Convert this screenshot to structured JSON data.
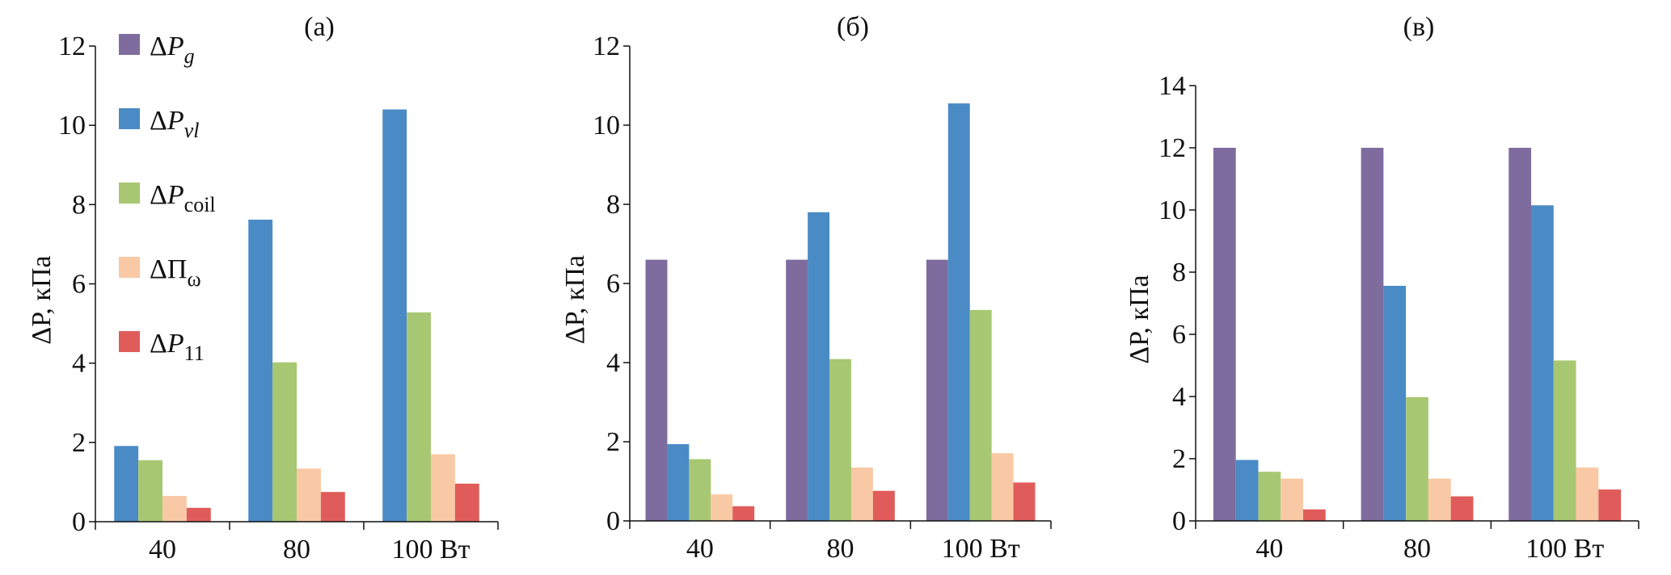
{
  "chart_data": [
    {
      "type": "bar",
      "title": "(a)",
      "ylabel": "ΔP, кПа",
      "categories": [
        "40",
        "80",
        "100 Вт"
      ],
      "ylim": [
        0,
        12
      ],
      "yticks": [
        0,
        2,
        4,
        6,
        8,
        10,
        12
      ],
      "grid": false,
      "legend": "top-left",
      "series": [
        {
          "name": "ΔPg",
          "values": [
            null,
            null,
            null
          ]
        },
        {
          "name": "ΔPvl",
          "values": [
            1.91,
            7.62,
            10.4
          ]
        },
        {
          "name": "ΔPcoil",
          "values": [
            1.55,
            4.02,
            5.28
          ]
        },
        {
          "name": "ΔΠω",
          "values": [
            0.65,
            1.34,
            1.7
          ]
        },
        {
          "name": "ΔP11",
          "values": [
            0.35,
            0.75,
            0.96
          ]
        }
      ]
    },
    {
      "type": "bar",
      "title": "(б)",
      "ylabel": "ΔP, кПа",
      "categories": [
        "40",
        "80",
        "100 Вт"
      ],
      "ylim": [
        0,
        12
      ],
      "yticks": [
        0,
        2,
        4,
        6,
        8,
        10,
        12
      ],
      "grid": false,
      "series": [
        {
          "name": "ΔPg",
          "values": [
            6.6,
            6.6,
            6.6
          ]
        },
        {
          "name": "ΔPvl",
          "values": [
            1.94,
            7.8,
            10.55
          ]
        },
        {
          "name": "ΔPcoil",
          "values": [
            1.56,
            4.09,
            5.33
          ]
        },
        {
          "name": "ΔΠω",
          "values": [
            0.67,
            1.35,
            1.71
          ]
        },
        {
          "name": "ΔP11",
          "values": [
            0.37,
            0.76,
            0.97
          ]
        }
      ]
    },
    {
      "type": "bar",
      "title": "(в)",
      "ylabel": "ΔP, кПа",
      "categories": [
        "40",
        "80",
        "100 Вт"
      ],
      "ylim": [
        0,
        14
      ],
      "yticks": [
        0,
        2,
        4,
        6,
        8,
        10,
        12,
        14
      ],
      "grid": false,
      "series": [
        {
          "name": "ΔPg",
          "values": [
            12.0,
            12.0,
            12.0
          ]
        },
        {
          "name": "ΔPvl",
          "values": [
            1.96,
            7.56,
            10.15
          ]
        },
        {
          "name": "ΔPcoil",
          "values": [
            1.58,
            3.98,
            5.16
          ]
        },
        {
          "name": "ΔΠω",
          "values": [
            1.36,
            1.36,
            1.72
          ]
        },
        {
          "name": "ΔP11",
          "values": [
            0.37,
            0.79,
            1.01
          ]
        }
      ]
    }
  ],
  "legend": [
    {
      "base": "ΔP",
      "sub": "g",
      "italic_sub": true,
      "color": "#7f6c9e"
    },
    {
      "base": "ΔP",
      "sub": "vl",
      "italic_sub": true,
      "color": "#4a8bc6"
    },
    {
      "base": "ΔP",
      "sub": "coil",
      "italic_sub": false,
      "color": "#a8c772"
    },
    {
      "base": "ΔΠ",
      "sub": "ω",
      "italic_sub": false,
      "color": "#f8c9a4"
    },
    {
      "base": "ΔP",
      "sub": "11",
      "italic_sub": false,
      "color": "#e05c5a"
    }
  ],
  "ylabel_parts": {
    "base": "ΔP",
    "unit": ", кПа"
  }
}
